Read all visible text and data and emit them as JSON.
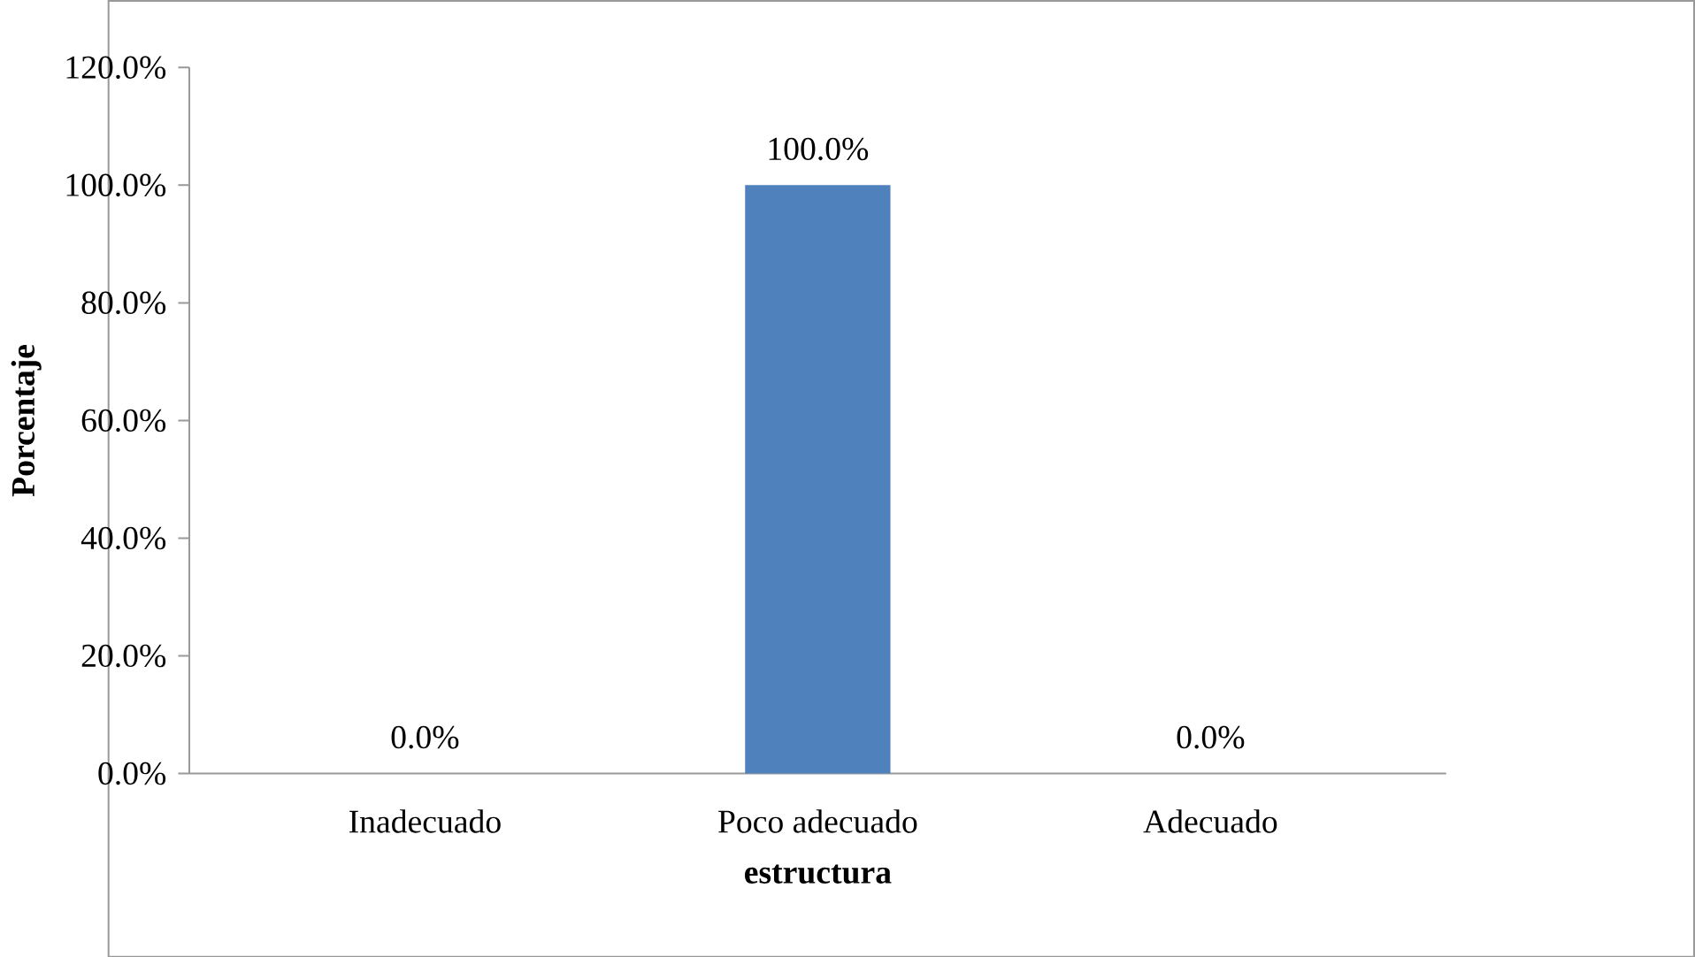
{
  "chart_data": {
    "type": "bar",
    "xlabel": "estructura",
    "ylabel": "Porcentaje",
    "categories": [
      "Inadecuado",
      "Poco adecuado",
      "Adecuado"
    ],
    "values": [
      0,
      100,
      0
    ],
    "value_labels": [
      "0.0%",
      "100.0%",
      "0.0%"
    ],
    "color": "#4f81bd",
    "ylim": [
      0,
      120
    ],
    "yticks": [
      {
        "value": 0,
        "label": "0.0%"
      },
      {
        "value": 20,
        "label": "20.0%"
      },
      {
        "value": 40,
        "label": "40.0%"
      },
      {
        "value": 60,
        "label": "60.0%"
      },
      {
        "value": 80,
        "label": "80.0%"
      },
      {
        "value": 100,
        "label": "100.0%"
      },
      {
        "value": 120,
        "label": "120.0%"
      }
    ]
  }
}
